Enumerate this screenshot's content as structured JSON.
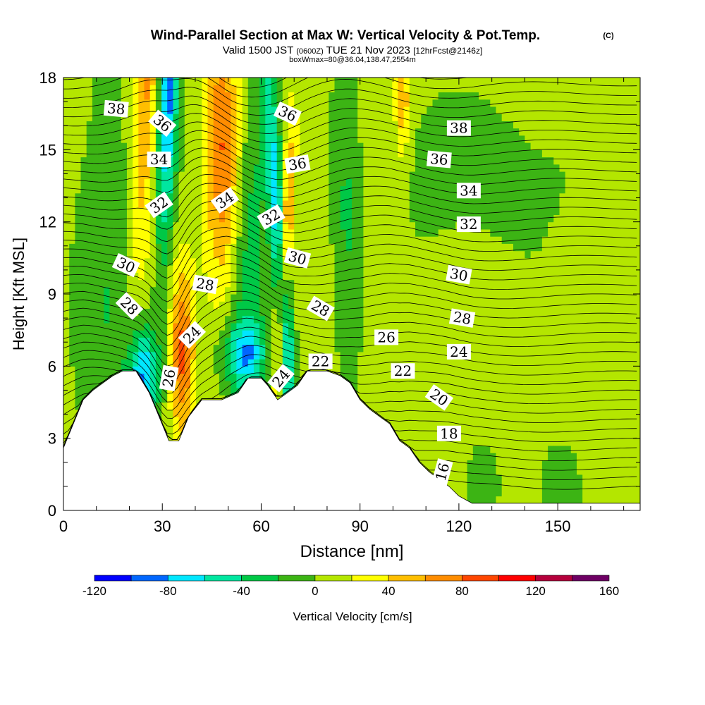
{
  "chart_data": {
    "type": "heatmap",
    "title": "Wind-Parallel Section at Max W: Vertical Velocity & Pot.Temp.",
    "title_mark": "(C)",
    "subtitle_parts": {
      "valid_prefix": "Valid 1500 JST",
      "utc": "(0600Z)",
      "date": "TUE 21 Nov 2023",
      "forecast": "[12hrFcst@2146z]"
    },
    "subtitle2": "boxWmax=80@36.04,138.47,2554m",
    "xlabel": "Distance [nm]",
    "ylabel": "Height [Kft MSL]",
    "xlim": [
      0,
      175
    ],
    "ylim": [
      0,
      18
    ],
    "x_ticks": [
      "0",
      "30",
      "60",
      "90",
      "120",
      "150"
    ],
    "y_ticks": [
      "0",
      "3",
      "6",
      "9",
      "12",
      "15",
      "18"
    ],
    "colorbar": {
      "label": "Vertical Velocity [cm/s]",
      "ticks": [
        "-120",
        "-80",
        "-40",
        "0",
        "40",
        "80",
        "120",
        "160"
      ],
      "levels": [
        -120,
        -100,
        -80,
        -60,
        -40,
        -20,
        0,
        20,
        40,
        60,
        80,
        100,
        120,
        140,
        160
      ],
      "colors": [
        "#0000ff",
        "#0066ff",
        "#00e6ff",
        "#00e6a0",
        "#00c846",
        "#3cb414",
        "#b4e600",
        "#ffff00",
        "#ffbe00",
        "#ff8c00",
        "#ff4600",
        "#ff0000",
        "#b4003c",
        "#6e0064"
      ]
    },
    "terrain": [
      {
        "x": 0,
        "y": 2.6
      },
      {
        "x": 3,
        "y": 3.6
      },
      {
        "x": 6,
        "y": 4.6
      },
      {
        "x": 9,
        "y": 5.0
      },
      {
        "x": 12,
        "y": 5.3
      },
      {
        "x": 15,
        "y": 5.6
      },
      {
        "x": 18,
        "y": 5.8
      },
      {
        "x": 22,
        "y": 5.8
      },
      {
        "x": 26,
        "y": 4.9
      },
      {
        "x": 29,
        "y": 3.9
      },
      {
        "x": 32,
        "y": 2.9
      },
      {
        "x": 35,
        "y": 2.9
      },
      {
        "x": 38,
        "y": 3.9
      },
      {
        "x": 42,
        "y": 4.6
      },
      {
        "x": 48,
        "y": 4.6
      },
      {
        "x": 53,
        "y": 4.9
      },
      {
        "x": 56,
        "y": 5.5
      },
      {
        "x": 60,
        "y": 5.5
      },
      {
        "x": 62,
        "y": 5.2
      },
      {
        "x": 65,
        "y": 4.6
      },
      {
        "x": 68,
        "y": 4.9
      },
      {
        "x": 71,
        "y": 5.2
      },
      {
        "x": 74,
        "y": 5.8
      },
      {
        "x": 80,
        "y": 5.8
      },
      {
        "x": 84,
        "y": 5.6
      },
      {
        "x": 87,
        "y": 5.3
      },
      {
        "x": 90,
        "y": 4.6
      },
      {
        "x": 93,
        "y": 4.2
      },
      {
        "x": 96,
        "y": 3.9
      },
      {
        "x": 99,
        "y": 3.6
      },
      {
        "x": 102,
        "y": 2.9
      },
      {
        "x": 105,
        "y": 2.6
      },
      {
        "x": 108,
        "y": 2.0
      },
      {
        "x": 111,
        "y": 1.6
      },
      {
        "x": 114,
        "y": 1.3
      },
      {
        "x": 117,
        "y": 1.0
      },
      {
        "x": 120,
        "y": 0.6
      },
      {
        "x": 124,
        "y": 0.3
      },
      {
        "x": 175,
        "y": 0.3
      }
    ],
    "isentrope_labels": [
      {
        "text": "38",
        "x": 16,
        "y": 16.7,
        "angle": 5
      },
      {
        "text": "36",
        "x": 30,
        "y": 16.1,
        "angle": 40
      },
      {
        "text": "34",
        "x": 29,
        "y": 14.6,
        "angle": 0
      },
      {
        "text": "32",
        "x": 29,
        "y": 12.7,
        "angle": -35
      },
      {
        "text": "30",
        "x": 19,
        "y": 10.2,
        "angle": 25
      },
      {
        "text": "28",
        "x": 20,
        "y": 8.5,
        "angle": 45
      },
      {
        "text": "36",
        "x": 68,
        "y": 16.5,
        "angle": 25
      },
      {
        "text": "36",
        "x": 71,
        "y": 14.4,
        "angle": -10
      },
      {
        "text": "34",
        "x": 49,
        "y": 12.9,
        "angle": -35
      },
      {
        "text": "32",
        "x": 63,
        "y": 12.2,
        "angle": -30
      },
      {
        "text": "30",
        "x": 71,
        "y": 10.5,
        "angle": 15
      },
      {
        "text": "28",
        "x": 43,
        "y": 9.4,
        "angle": 10
      },
      {
        "text": "28",
        "x": 78,
        "y": 8.4,
        "angle": 30
      },
      {
        "text": "24",
        "x": 39,
        "y": 7.3,
        "angle": -45
      },
      {
        "text": "26",
        "x": 32,
        "y": 5.5,
        "angle": -80
      },
      {
        "text": "24",
        "x": 66,
        "y": 5.5,
        "angle": -50
      },
      {
        "text": "22",
        "x": 78,
        "y": 6.2,
        "angle": 0
      },
      {
        "text": "26",
        "x": 98,
        "y": 7.2,
        "angle": 0
      },
      {
        "text": "22",
        "x": 103,
        "y": 5.8,
        "angle": 0
      },
      {
        "text": "20",
        "x": 114,
        "y": 4.7,
        "angle": 35
      },
      {
        "text": "18",
        "x": 117,
        "y": 3.2,
        "angle": 0
      },
      {
        "text": "16",
        "x": 115,
        "y": 1.6,
        "angle": -75
      },
      {
        "text": "38",
        "x": 120,
        "y": 15.9,
        "angle": 0
      },
      {
        "text": "36",
        "x": 114,
        "y": 14.6,
        "angle": 5
      },
      {
        "text": "34",
        "x": 123,
        "y": 13.3,
        "angle": 0
      },
      {
        "text": "32",
        "x": 123,
        "y": 11.9,
        "angle": 0
      },
      {
        "text": "30",
        "x": 120,
        "y": 9.8,
        "angle": 10
      },
      {
        "text": "28",
        "x": 121,
        "y": 8.0,
        "angle": 10
      },
      {
        "text": "24",
        "x": 120,
        "y": 6.6,
        "angle": 0
      }
    ]
  }
}
